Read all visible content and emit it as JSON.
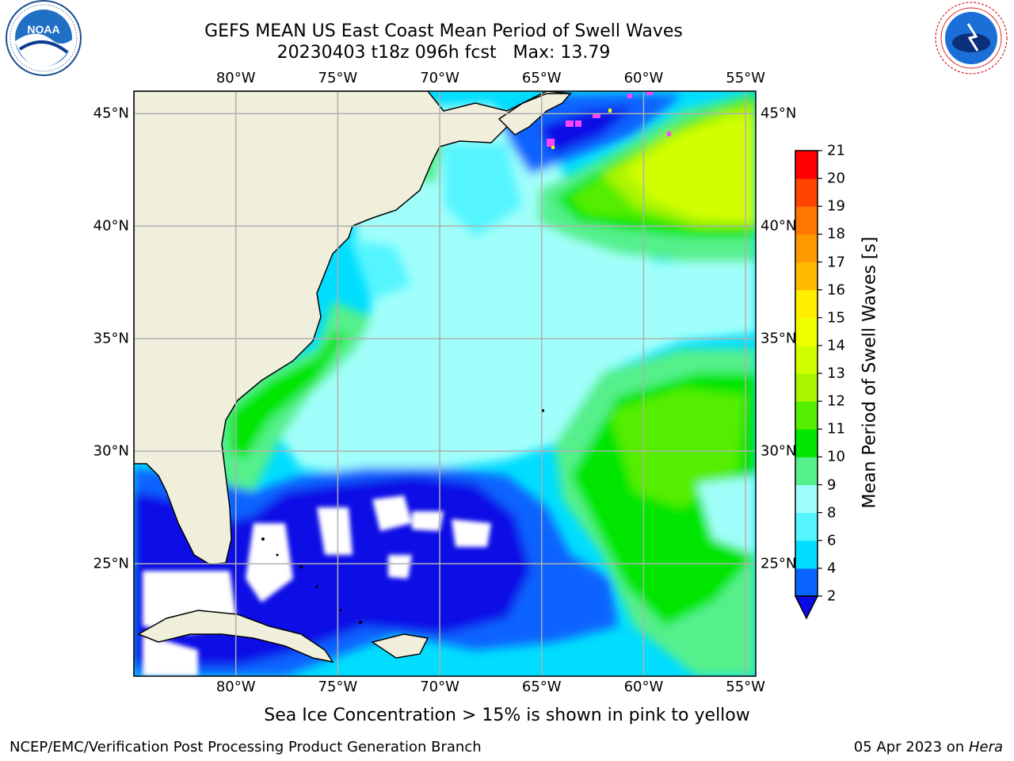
{
  "header": {
    "title_line1": "GEFS MEAN US East Coast Mean Period of Swell Waves",
    "title_line2": "20230403 t18z 096h fcst   Max: 13.79"
  },
  "logos": {
    "left": {
      "name": "noaa-logo",
      "text": "NOAA",
      "ring_text": "NATIONAL OCEANIC AND ATMOSPHERIC ADMINISTRATION · U.S. DEPARTMENT OF COMMERCE"
    },
    "right": {
      "name": "nws-logo",
      "ring_text": "NATIONAL WEATHER SERVICE"
    }
  },
  "map": {
    "lon_labels": [
      "80°W",
      "75°W",
      "70°W",
      "65°W",
      "60°W",
      "55°W"
    ],
    "lat_labels": [
      "45°N",
      "40°N",
      "35°N",
      "30°N",
      "25°N"
    ],
    "lon_range": [
      -85,
      -54.5
    ],
    "lat_range": [
      20,
      46
    ],
    "gridlines": true,
    "colors": {
      "land": "#efefdc",
      "grid": "#b0b0b0"
    }
  },
  "colorbar": {
    "title": "Mean Period of Swell Waves [s]",
    "tick_labels": [
      "2",
      "4",
      "6",
      "8",
      "9",
      "10",
      "11",
      "12",
      "13",
      "14",
      "15",
      "16",
      "17",
      "18",
      "19",
      "20",
      "21"
    ],
    "colors": [
      "#0a64ff",
      "#00ddff",
      "#55f5ff",
      "#a0fffa",
      "#55f08c",
      "#00e600",
      "#55ee00",
      "#aaf500",
      "#d2ff00",
      "#f0ff00",
      "#ffee00",
      "#ffbb00",
      "#ff9900",
      "#ff7700",
      "#ff4400",
      "#ff0000"
    ],
    "under_color": "#0a0ae6"
  },
  "footer": {
    "note": "Sea Ice Concentration > 15% is shown in pink to yellow",
    "credit_left": "NCEP/EMC/Verification Post Processing Product Generation Branch",
    "credit_date": "05 Apr 2023 on ",
    "credit_host": "Hera"
  }
}
